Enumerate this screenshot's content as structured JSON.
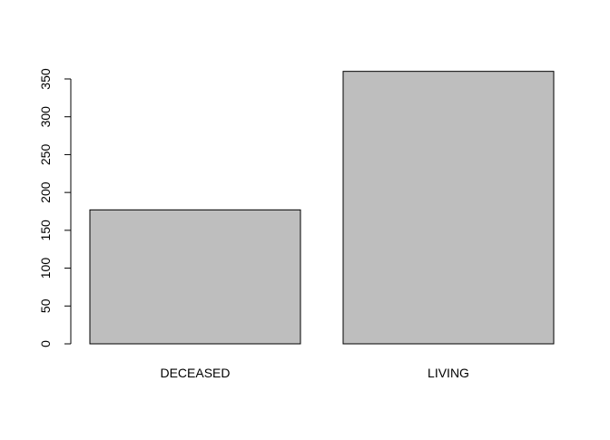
{
  "chart_data": {
    "type": "bar",
    "categories": [
      "DECEASED",
      "LIVING"
    ],
    "values": [
      177,
      360
    ],
    "ylim": [
      0,
      350
    ],
    "yticks": [
      0,
      50,
      100,
      150,
      200,
      250,
      300,
      350
    ],
    "grid": false,
    "colors": {
      "bar_fill": "#bebebe",
      "bar_stroke": "#000000",
      "axis": "#000000"
    }
  }
}
